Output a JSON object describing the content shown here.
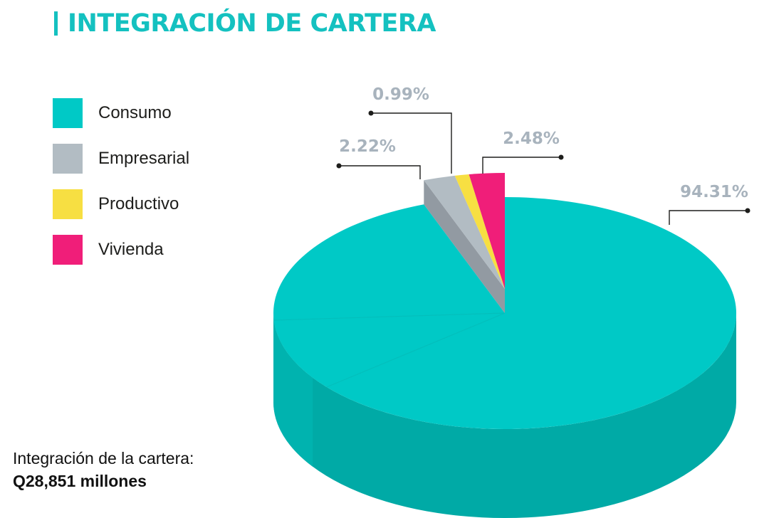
{
  "title": "INTEGRACIÓN DE CARTERA",
  "total": {
    "label": "Integración de la cartera:",
    "value": "Q28,851 millones"
  },
  "colors": {
    "accent": "#14c1c0",
    "label_gray": "#a8b3bd"
  },
  "chart_data": {
    "type": "pie",
    "style": "3d-exploded",
    "title": "INTEGRACIÓN DE CARTERA",
    "categories": [
      "Consumo",
      "Empresarial",
      "Productivo",
      "Vivienda"
    ],
    "values": [
      94.31,
      2.22,
      0.99,
      2.48
    ],
    "value_labels": [
      "94.31%",
      "2.22%",
      "0.99%",
      "2.48%"
    ],
    "colors": {
      "top": [
        "#00c9c6",
        "#b2bcc3",
        "#f7df42",
        "#f01e79"
      ],
      "side": [
        "#00aaa6",
        "#929aa2",
        "#d4bd2c",
        "#c2155f"
      ]
    },
    "legend_position": "left"
  }
}
